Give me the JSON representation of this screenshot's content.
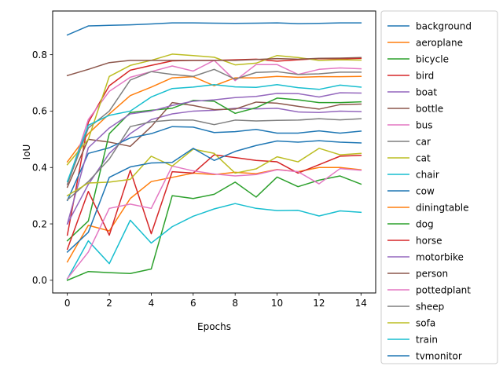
{
  "chart_data": {
    "type": "line",
    "xlabel": "Epochs",
    "ylabel": "IoU",
    "xlim": [
      -0.7,
      14.7
    ],
    "ylim": [
      -0.045,
      0.955
    ],
    "xticks": [
      0,
      2,
      4,
      6,
      8,
      10,
      12,
      14
    ],
    "yticks": [
      0.0,
      0.2,
      0.4,
      0.6,
      0.8
    ],
    "ytick_labels": [
      "0.0",
      "0.2",
      "0.4",
      "0.6",
      "0.8"
    ],
    "grid": false,
    "legend_position": "outside-right",
    "x": [
      0,
      1,
      2,
      3,
      4,
      5,
      6,
      7,
      8,
      9,
      10,
      11,
      12,
      13,
      14
    ],
    "series": [
      {
        "name": "background",
        "color": "#1f77b4",
        "values": [
          0.87,
          0.902,
          0.904,
          0.906,
          0.909,
          0.913,
          0.913,
          0.912,
          0.911,
          0.912,
          0.913,
          0.91,
          0.911,
          0.913,
          0.913
        ]
      },
      {
        "name": "aeroplane",
        "color": "#ff7f0e",
        "values": [
          0.42,
          0.52,
          0.59,
          0.655,
          0.685,
          0.718,
          0.722,
          0.69,
          0.718,
          0.718,
          0.723,
          0.72,
          0.722,
          0.722,
          0.723
        ]
      },
      {
        "name": "bicycle",
        "color": "#2ca02c",
        "values": [
          0.0,
          0.031,
          0.027,
          0.024,
          0.04,
          0.3,
          0.29,
          0.305,
          0.348,
          0.295,
          0.366,
          0.332,
          0.355,
          0.37,
          0.341
        ]
      },
      {
        "name": "bird",
        "color": "#d62728",
        "values": [
          0.16,
          0.56,
          0.69,
          0.745,
          0.762,
          0.778,
          0.78,
          0.78,
          0.782,
          0.784,
          0.777,
          0.782,
          0.786,
          0.785,
          0.787
        ]
      },
      {
        "name": "boat",
        "color": "#9467bd",
        "values": [
          0.2,
          0.34,
          0.45,
          0.52,
          0.57,
          0.59,
          0.6,
          0.603,
          0.61,
          0.608,
          0.61,
          0.597,
          0.595,
          0.6,
          0.598
        ]
      },
      {
        "name": "bottle",
        "color": "#8c564b",
        "values": [
          0.33,
          0.5,
          0.49,
          0.475,
          0.545,
          0.63,
          0.62,
          0.605,
          0.607,
          0.632,
          0.628,
          0.617,
          0.607,
          0.623,
          0.625
        ]
      },
      {
        "name": "bus",
        "color": "#e377c2",
        "values": [
          0.34,
          0.57,
          0.67,
          0.72,
          0.74,
          0.76,
          0.742,
          0.78,
          0.708,
          0.765,
          0.765,
          0.73,
          0.748,
          0.753,
          0.75
        ]
      },
      {
        "name": "car",
        "color": "#7f7f7f",
        "values": [
          0.34,
          0.54,
          0.6,
          0.71,
          0.74,
          0.73,
          0.723,
          0.748,
          0.713,
          0.737,
          0.74,
          0.73,
          0.732,
          0.738,
          0.738
        ]
      },
      {
        "name": "cat",
        "color": "#bcbd22",
        "values": [
          0.41,
          0.5,
          0.723,
          0.762,
          0.78,
          0.802,
          0.797,
          0.791,
          0.764,
          0.77,
          0.797,
          0.79,
          0.78,
          0.782,
          0.781
        ]
      },
      {
        "name": "chair",
        "color": "#17becf",
        "values": [
          0.005,
          0.14,
          0.059,
          0.213,
          0.132,
          0.19,
          0.227,
          0.253,
          0.272,
          0.255,
          0.247,
          0.248,
          0.228,
          0.246,
          0.241
        ]
      },
      {
        "name": "cow",
        "color": "#1f77b4",
        "values": [
          0.283,
          0.45,
          0.47,
          0.505,
          0.52,
          0.545,
          0.543,
          0.524,
          0.527,
          0.535,
          0.522,
          0.522,
          0.53,
          0.522,
          0.529
        ]
      },
      {
        "name": "diningtable",
        "color": "#ff7f0e",
        "values": [
          0.065,
          0.195,
          0.175,
          0.29,
          0.35,
          0.365,
          0.38,
          0.375,
          0.383,
          0.378,
          0.393,
          0.385,
          0.4,
          0.4,
          0.392
        ]
      },
      {
        "name": "dog",
        "color": "#2ca02c",
        "values": [
          0.14,
          0.21,
          0.52,
          0.595,
          0.603,
          0.61,
          0.638,
          0.635,
          0.592,
          0.612,
          0.646,
          0.64,
          0.63,
          0.63,
          0.633
        ]
      },
      {
        "name": "horse",
        "color": "#d62728",
        "values": [
          0.11,
          0.315,
          0.16,
          0.39,
          0.165,
          0.385,
          0.38,
          0.445,
          0.435,
          0.425,
          0.42,
          0.38,
          0.41,
          0.44,
          0.443
        ]
      },
      {
        "name": "motorbike",
        "color": "#9467bd",
        "values": [
          0.2,
          0.47,
          0.54,
          0.59,
          0.6,
          0.62,
          0.635,
          0.64,
          0.648,
          0.652,
          0.663,
          0.662,
          0.65,
          0.665,
          0.664
        ]
      },
      {
        "name": "person",
        "color": "#8c564b",
        "values": [
          0.726,
          0.748,
          0.772,
          0.78,
          0.78,
          0.78,
          0.78,
          0.78,
          0.78,
          0.783,
          0.786,
          0.784,
          0.787,
          0.788,
          0.79
        ]
      },
      {
        "name": "pottedplant",
        "color": "#e377c2",
        "values": [
          0.006,
          0.1,
          0.255,
          0.27,
          0.255,
          0.405,
          0.388,
          0.377,
          0.37,
          0.375,
          0.392,
          0.385,
          0.342,
          0.396,
          0.39
        ]
      },
      {
        "name": "sheep",
        "color": "#7f7f7f",
        "values": [
          0.285,
          0.35,
          0.43,
          0.545,
          0.562,
          0.568,
          0.568,
          0.552,
          0.568,
          0.565,
          0.567,
          0.568,
          0.573,
          0.569,
          0.573
        ]
      },
      {
        "name": "sofa",
        "color": "#bcbd22",
        "values": [
          0.3,
          0.345,
          0.348,
          0.358,
          0.44,
          0.405,
          0.465,
          0.45,
          0.38,
          0.395,
          0.438,
          0.42,
          0.468,
          0.445,
          0.45
        ]
      },
      {
        "name": "train",
        "color": "#17becf",
        "values": [
          0.35,
          0.55,
          0.585,
          0.6,
          0.65,
          0.68,
          0.685,
          0.694,
          0.686,
          0.684,
          0.694,
          0.683,
          0.677,
          0.692,
          0.685
        ]
      },
      {
        "name": "tvmonitor",
        "color": "#1f77b4",
        "values": [
          0.1,
          0.17,
          0.365,
          0.402,
          0.416,
          0.418,
          0.468,
          0.425,
          0.457,
          0.478,
          0.494,
          0.49,
          0.495,
          0.49,
          0.487
        ]
      }
    ]
  }
}
